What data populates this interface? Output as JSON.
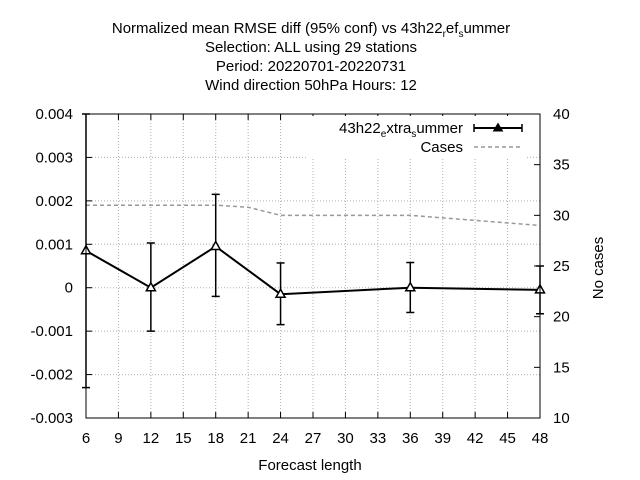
{
  "title": {
    "line1_main": "Normalized mean RMSE diff (95% conf) vs 43h22",
    "line1_sub1": "r",
    "line1_mid": "ef",
    "line1_sub2": "s",
    "line1_end": "ummer",
    "line2": "Selection: ALL using    29 stations",
    "line3": "Period: 20220701-20220731",
    "line4": "Wind direction 50hPa   Hours:  12"
  },
  "chart_data": {
    "type": "line",
    "xlabel": "Forecast length",
    "ylabel_right": "No cases",
    "xlim": [
      6,
      48
    ],
    "ylim": [
      -0.003,
      0.004
    ],
    "y2lim": [
      10,
      40
    ],
    "grid": true,
    "legend_position": "top-right",
    "x_ticks": [
      "6",
      "9",
      "12",
      "15",
      "18",
      "21",
      "24",
      "27",
      "30",
      "33",
      "36",
      "39",
      "42",
      "45",
      "48"
    ],
    "y_ticks": [
      "0.004",
      "0.003",
      "0.002",
      "0.001",
      "0",
      "-0.001",
      "-0.002",
      "-0.003"
    ],
    "y2_ticks": [
      "40",
      "35",
      "30",
      "25",
      "20",
      "15",
      "10"
    ],
    "legend": {
      "series1_main": "43h22",
      "series1_sub1": "e",
      "series1_mid": "xtra",
      "series1_sub2": "s",
      "series1_end": "ummer",
      "series2": "Cases"
    },
    "series": [
      {
        "x": [
          6,
          12,
          18,
          24,
          36,
          48
        ],
        "y": [
          0.00085,
          0.0,
          0.00095,
          -0.00015,
          0.0,
          -5e-05
        ],
        "err_low": [
          -0.0023,
          -0.001,
          -0.0002,
          -0.00085,
          -0.00057,
          -0.0006
        ],
        "err_high": [
          0.004,
          0.00103,
          0.00215,
          0.00057,
          0.00058,
          0.0005
        ],
        "color": "#000000",
        "marker": "triangle"
      },
      {
        "x": [
          6,
          12,
          18,
          21,
          24,
          30,
          36,
          42,
          48
        ],
        "y": [
          31,
          31,
          31,
          30.8,
          30,
          30,
          30,
          29.5,
          29
        ],
        "color": "#999999",
        "dash": true,
        "axis": "right"
      }
    ]
  }
}
